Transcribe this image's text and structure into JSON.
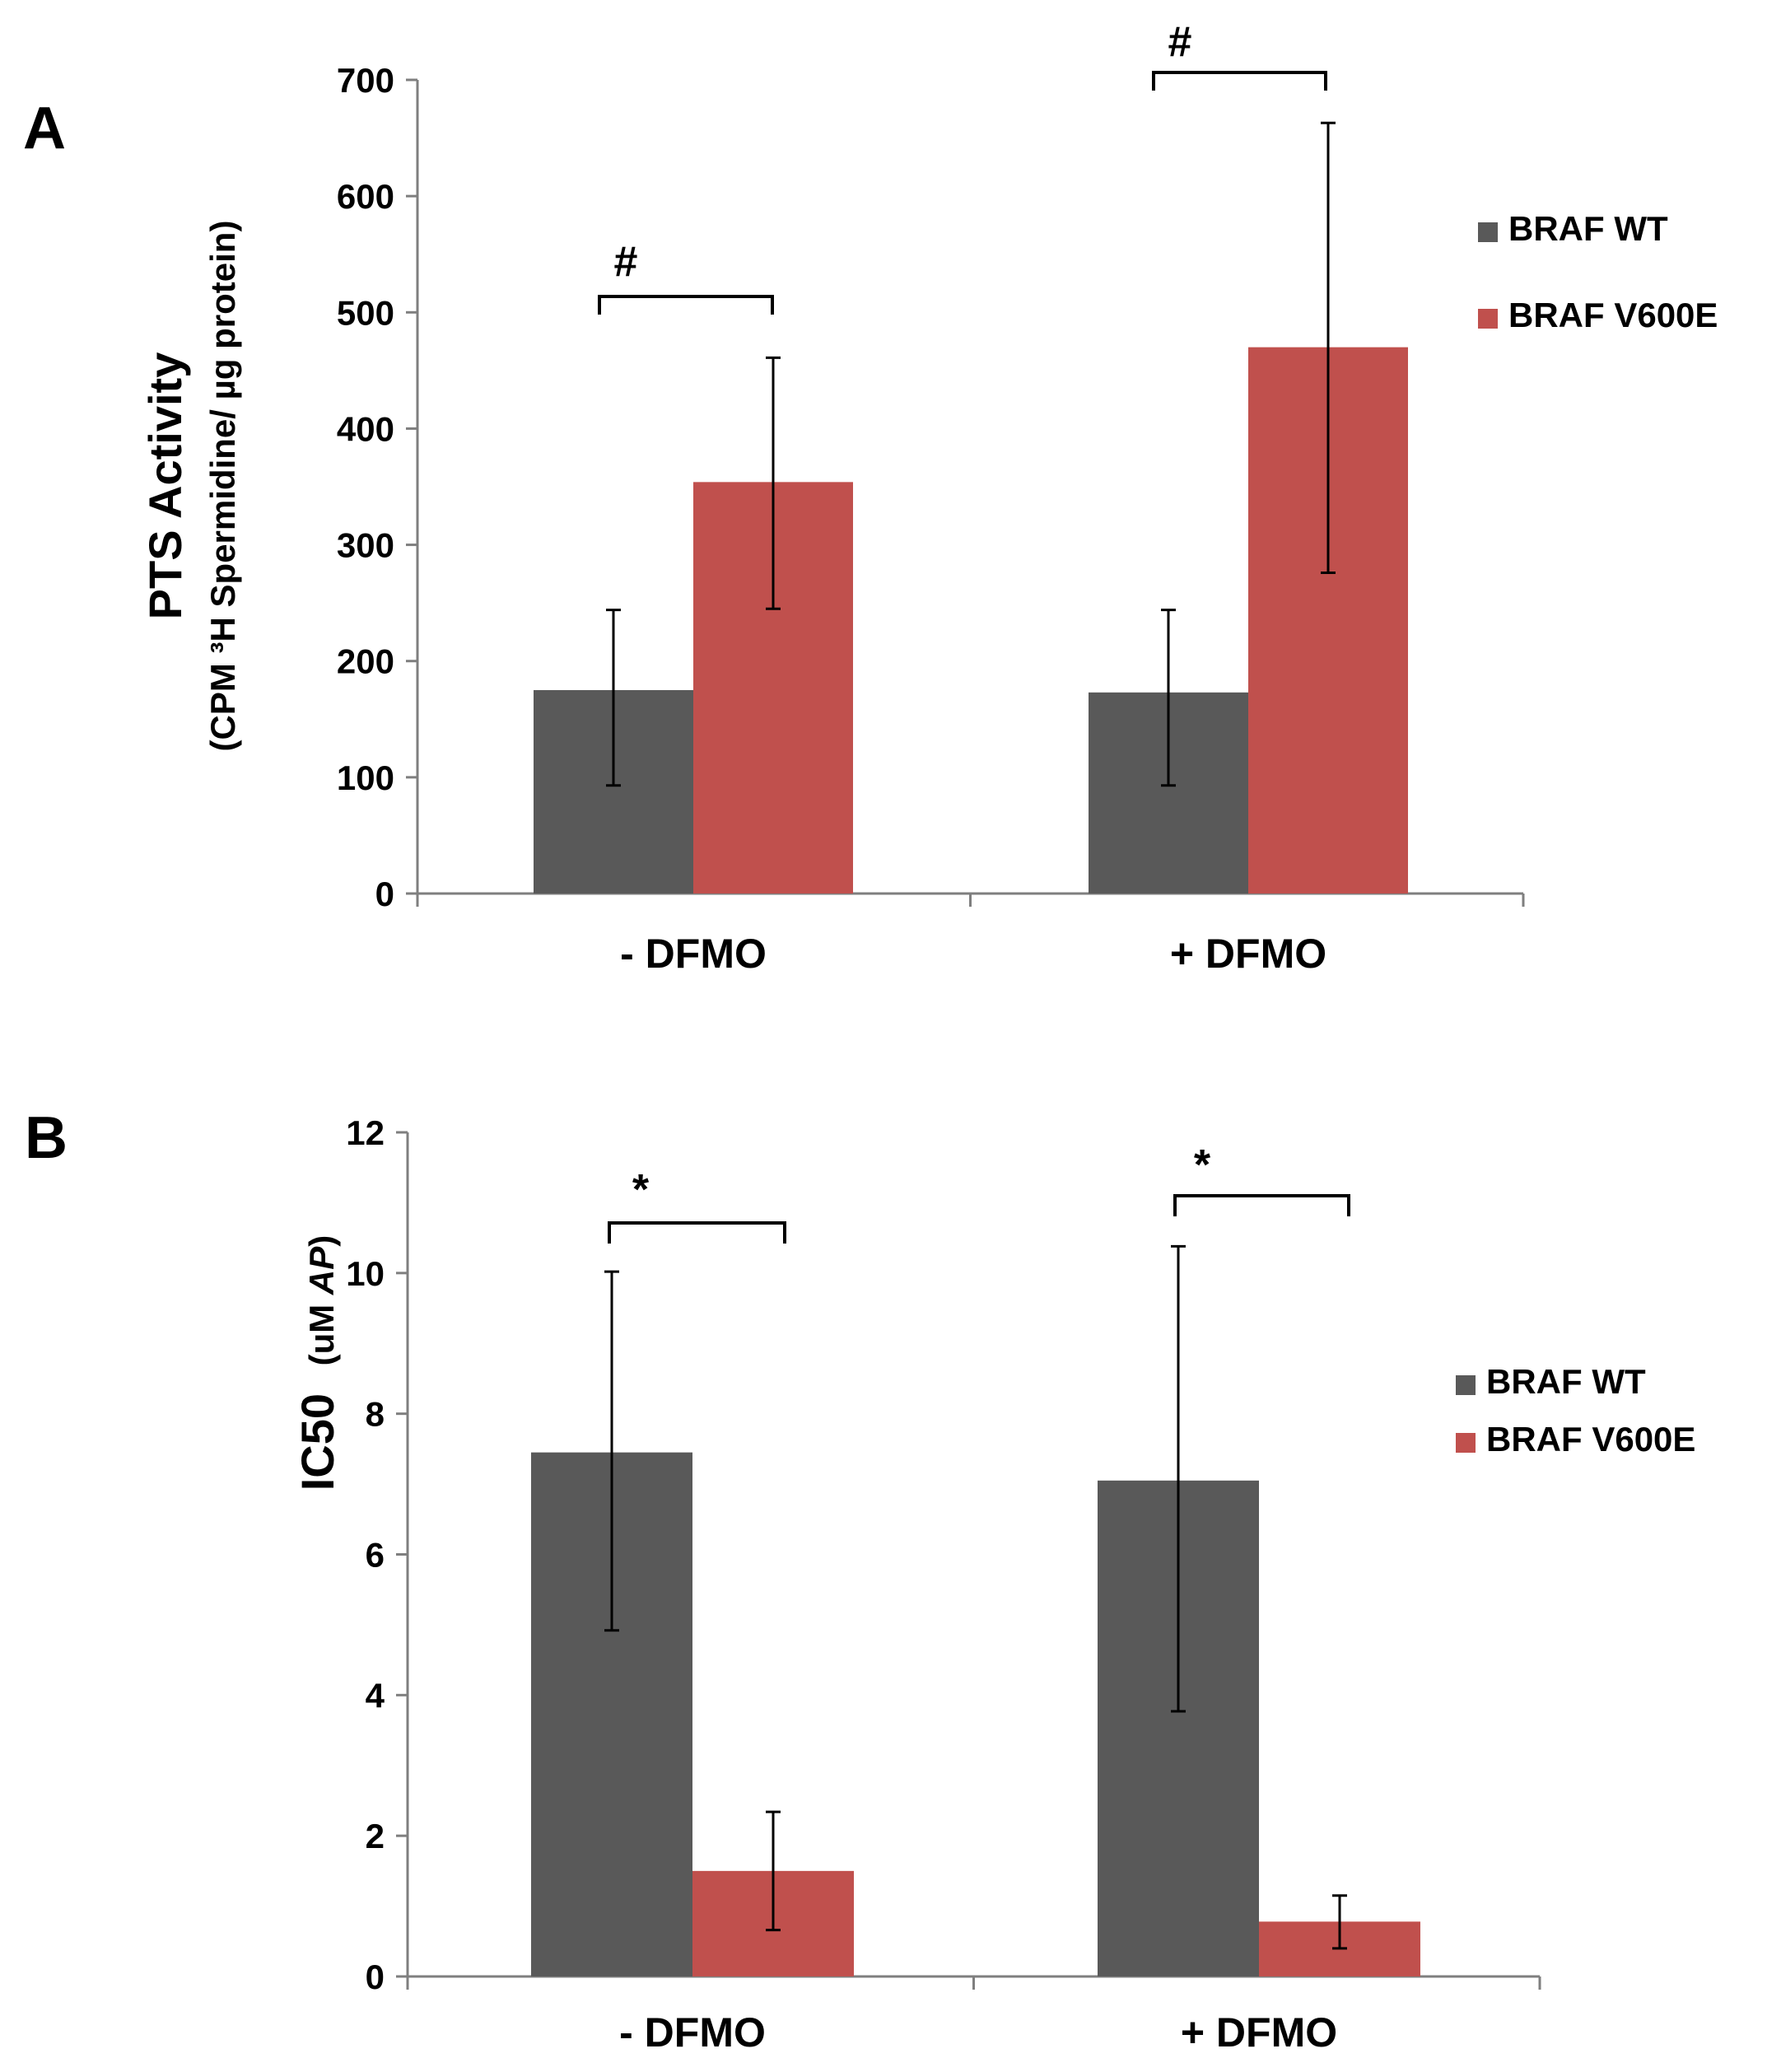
{
  "chart_data": [
    {
      "panel": "A",
      "type": "bar",
      "categories": [
        "- DFMO",
        "+ DFMO"
      ],
      "series": [
        {
          "name": "BRAF WT",
          "color": "#595959",
          "values": [
            175,
            173
          ],
          "errors": [
            [
              93,
              244
            ],
            [
              93,
              244
            ]
          ]
        },
        {
          "name": "BRAF V600E",
          "color": "#c0504d",
          "values": [
            354,
            470
          ],
          "errors": [
            [
              245,
              461
            ],
            [
              276,
              663
            ]
          ]
        }
      ],
      "ylabel": "PTS Activity",
      "ylabel_sub": "(CPM ³H Spermidine/ µg protein)",
      "ylim": [
        0,
        700
      ],
      "yticks": [
        0,
        100,
        200,
        300,
        400,
        500,
        600,
        700
      ],
      "ytick_labels": [
        "0",
        "100",
        "200",
        "300",
        "400",
        "500",
        "600",
        "700"
      ],
      "significance": [
        "#",
        "#"
      ],
      "legend_position": "right"
    },
    {
      "panel": "B",
      "type": "bar",
      "categories": [
        "- DFMO",
        "+ DFMO"
      ],
      "series": [
        {
          "name": "BRAF WT",
          "color": "#595959",
          "values": [
            7.45,
            7.05
          ],
          "errors": [
            [
              4.92,
              10.02
            ],
            [
              3.77,
              10.38
            ]
          ]
        },
        {
          "name": "BRAF V600E",
          "color": "#c0504d",
          "values": [
            1.5,
            0.78
          ],
          "errors": [
            [
              0.66,
              2.34
            ],
            [
              0.4,
              1.15
            ]
          ]
        }
      ],
      "ylabel": "IC50",
      "ylabel_unit_prefix": "(uM ",
      "ylabel_unit_italic": "AP",
      "ylabel_unit_suffix": ")",
      "ylim": [
        0,
        12
      ],
      "yticks": [
        0,
        2,
        4,
        6,
        8,
        10,
        12
      ],
      "ytick_labels": [
        "0",
        "2",
        "4",
        "6",
        "8",
        "10",
        "12"
      ],
      "significance": [
        "*",
        "*"
      ],
      "legend_position": "right"
    }
  ]
}
